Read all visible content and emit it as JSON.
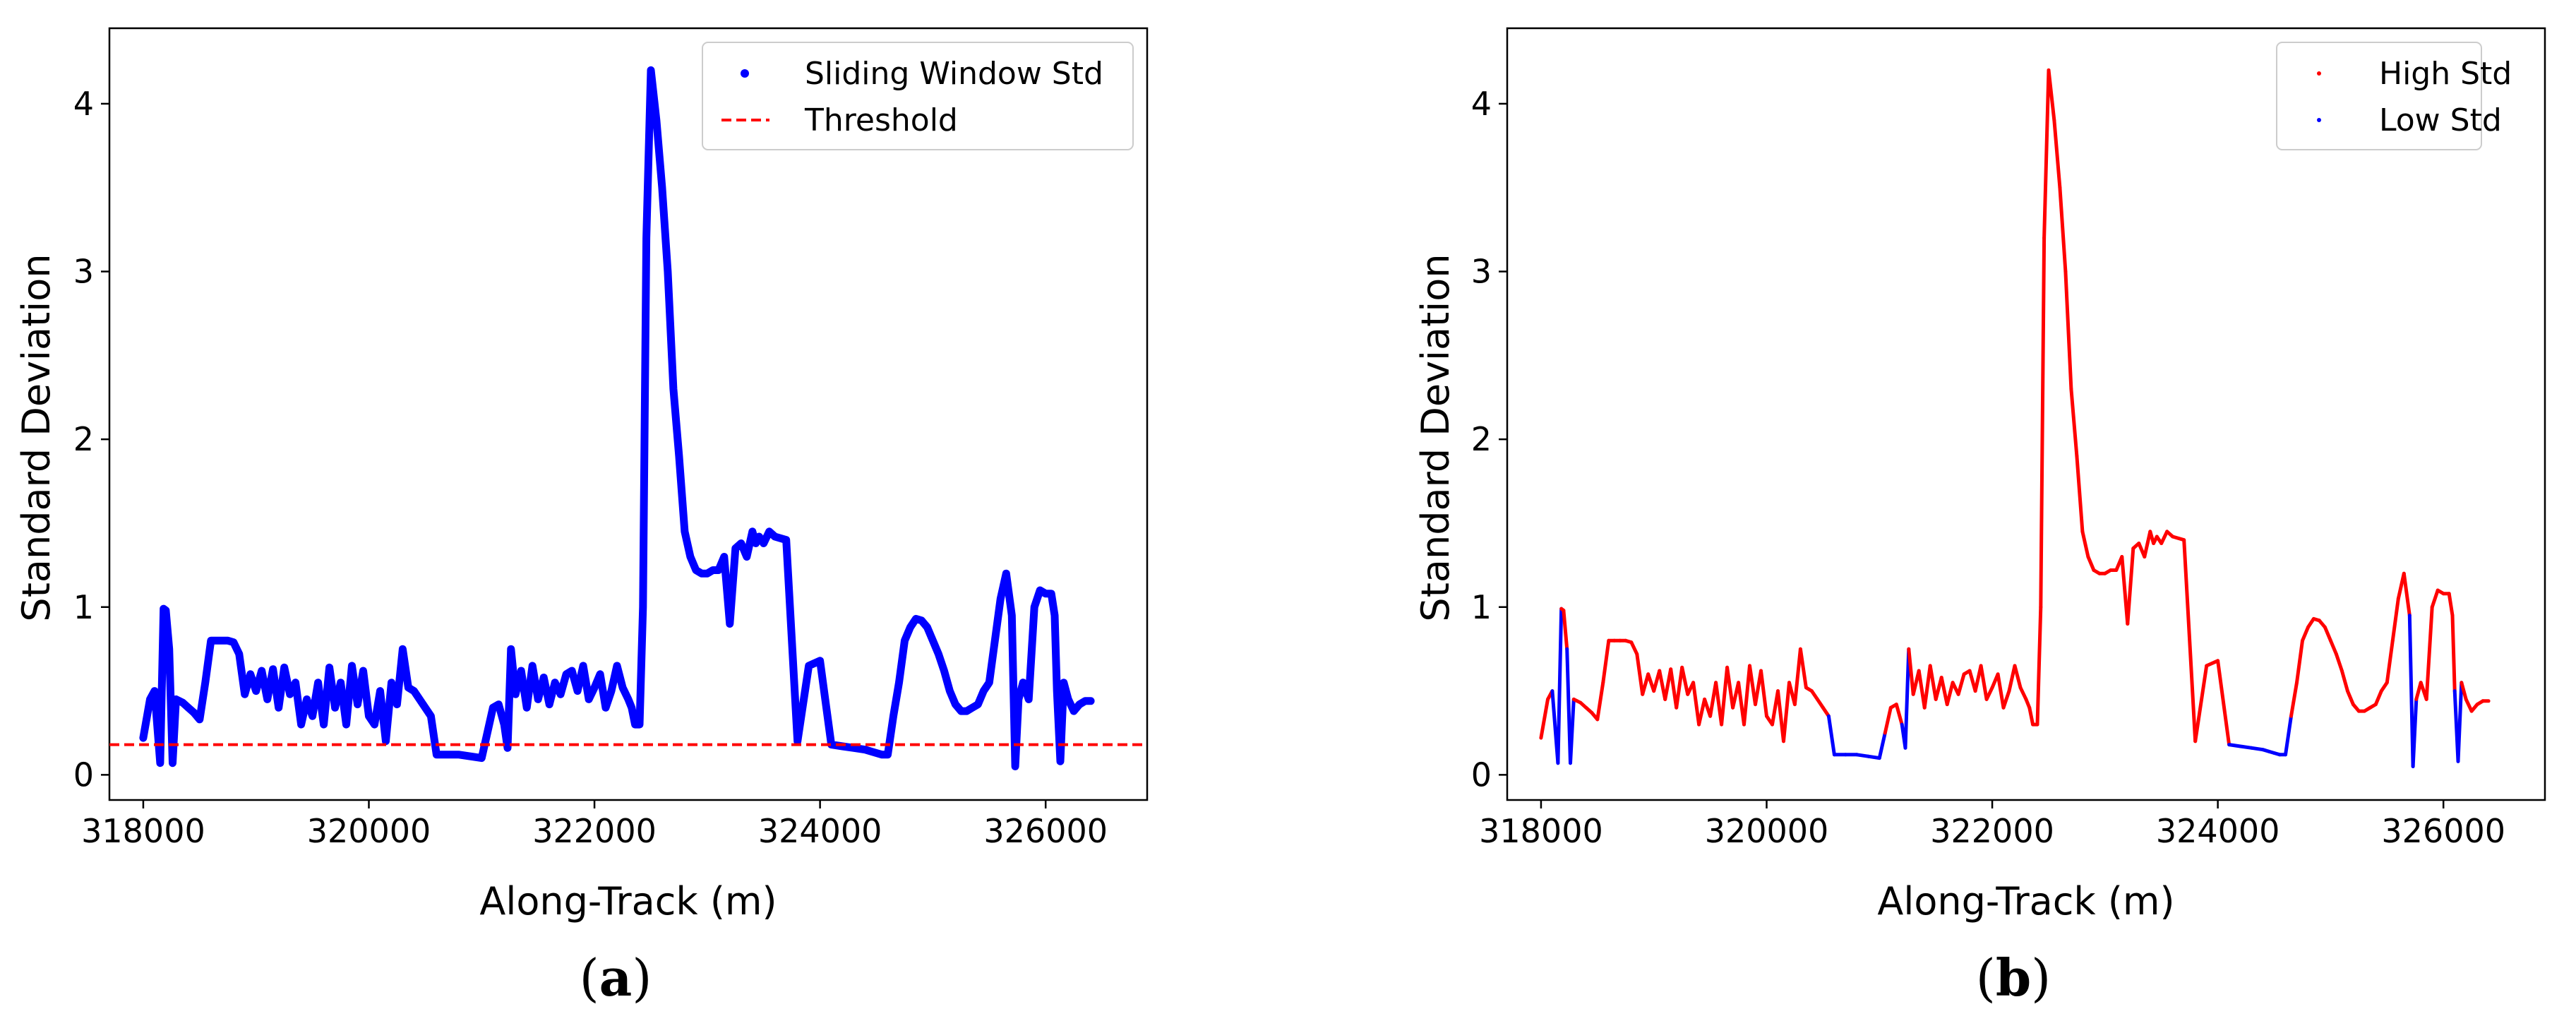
{
  "chart_data": [
    {
      "type": "line",
      "caption_open": "(",
      "caption_letter": "a",
      "caption_close": ")",
      "xlabel": "Along-Track (m)",
      "ylabel": "Standard Deviation",
      "xlim": [
        317700,
        326900
      ],
      "ylim": [
        -0.15,
        4.45
      ],
      "xticks": [
        318000,
        320000,
        322000,
        324000,
        326000
      ],
      "yticks": [
        0,
        1,
        2,
        3,
        4
      ],
      "legend_position": "top-right",
      "threshold": 0.18,
      "series": [
        {
          "name": "Sliding Window Std",
          "color": "#0000ff",
          "x": [
            318000,
            318060,
            318100,
            318150,
            318180,
            318200,
            318230,
            318260,
            318290,
            318320,
            318350,
            318400,
            318450,
            318500,
            318550,
            318600,
            318650,
            318700,
            318750,
            318800,
            318850,
            318900,
            318950,
            319000,
            319050,
            319100,
            319150,
            319200,
            319250,
            319300,
            319350,
            319400,
            319450,
            319500,
            319550,
            319600,
            319650,
            319700,
            319750,
            319800,
            319850,
            319900,
            319950,
            320000,
            320050,
            320100,
            320150,
            320200,
            320250,
            320300,
            320350,
            320400,
            320450,
            320500,
            320550,
            320600,
            320700,
            320800,
            320900,
            321000,
            321050,
            321100,
            321150,
            321200,
            321230,
            321260,
            321300,
            321350,
            321400,
            321450,
            321500,
            321550,
            321600,
            321650,
            321700,
            321750,
            321800,
            321850,
            321900,
            321950,
            322000,
            322050,
            322100,
            322150,
            322200,
            322250,
            322300,
            322330,
            322360,
            322400,
            322430,
            322460,
            322500,
            322550,
            322600,
            322650,
            322700,
            322750,
            322800,
            322850,
            322900,
            322950,
            323000,
            323050,
            323100,
            323150,
            323200,
            323250,
            323300,
            323350,
            323400,
            323430,
            323460,
            323500,
            323550,
            323600,
            323700,
            323800,
            323900,
            324000,
            324100,
            324200,
            324300,
            324400,
            324450,
            324500,
            324550,
            324600,
            324650,
            324700,
            324750,
            324800,
            324850,
            324900,
            324950,
            325000,
            325050,
            325100,
            325150,
            325200,
            325250,
            325300,
            325350,
            325400,
            325450,
            325500,
            325550,
            325600,
            325650,
            325700,
            325730,
            325760,
            325800,
            325850,
            325900,
            325950,
            326000,
            326050,
            326080,
            326100,
            326130,
            326160,
            326200,
            326250,
            326300,
            326350,
            326400
          ],
          "y": [
            0.22,
            0.45,
            0.5,
            0.07,
            0.99,
            0.98,
            0.75,
            0.07,
            0.45,
            0.44,
            0.43,
            0.4,
            0.37,
            0.33,
            0.55,
            0.8,
            0.8,
            0.8,
            0.8,
            0.79,
            0.72,
            0.48,
            0.6,
            0.5,
            0.62,
            0.45,
            0.63,
            0.4,
            0.64,
            0.48,
            0.55,
            0.3,
            0.45,
            0.35,
            0.55,
            0.3,
            0.64,
            0.4,
            0.55,
            0.3,
            0.65,
            0.42,
            0.62,
            0.35,
            0.3,
            0.5,
            0.2,
            0.55,
            0.42,
            0.75,
            0.52,
            0.5,
            0.45,
            0.4,
            0.35,
            0.12,
            0.12,
            0.12,
            0.11,
            0.1,
            0.25,
            0.4,
            0.42,
            0.3,
            0.16,
            0.75,
            0.48,
            0.62,
            0.4,
            0.65,
            0.45,
            0.58,
            0.42,
            0.55,
            0.48,
            0.6,
            0.62,
            0.5,
            0.65,
            0.45,
            0.52,
            0.6,
            0.4,
            0.5,
            0.65,
            0.52,
            0.45,
            0.4,
            0.3,
            0.3,
            1.0,
            3.2,
            4.2,
            3.9,
            3.5,
            3.0,
            2.3,
            1.9,
            1.45,
            1.3,
            1.22,
            1.2,
            1.2,
            1.22,
            1.22,
            1.3,
            0.9,
            1.35,
            1.38,
            1.3,
            1.45,
            1.38,
            1.42,
            1.38,
            1.45,
            1.42,
            1.4,
            0.2,
            0.65,
            0.68,
            0.18,
            0.17,
            0.16,
            0.15,
            0.14,
            0.13,
            0.12,
            0.12,
            0.35,
            0.55,
            0.8,
            0.88,
            0.93,
            0.92,
            0.88,
            0.8,
            0.72,
            0.62,
            0.5,
            0.42,
            0.38,
            0.38,
            0.4,
            0.42,
            0.5,
            0.55,
            0.8,
            1.05,
            1.2,
            0.95,
            0.05,
            0.45,
            0.55,
            0.45,
            1.0,
            1.1,
            1.08,
            1.08,
            0.95,
            0.5,
            0.08,
            0.55,
            0.45,
            0.38,
            0.42,
            0.44,
            0.44
          ]
        },
        {
          "name": "Threshold",
          "color": "#ff0000",
          "style": "dashed"
        }
      ]
    },
    {
      "type": "line",
      "caption_open": "(",
      "caption_letter": "b",
      "caption_close": ")",
      "xlabel": "Along-Track (m)",
      "ylabel": "Standard Deviation",
      "xlim": [
        317700,
        326900
      ],
      "ylim": [
        -0.15,
        4.45
      ],
      "xticks": [
        318000,
        320000,
        322000,
        324000,
        326000
      ],
      "yticks": [
        0,
        1,
        2,
        3,
        4
      ],
      "legend_position": "top-right",
      "series": [
        {
          "name": "High Std",
          "color": "#ff0000"
        },
        {
          "name": "Low Std",
          "color": "#0000ff"
        }
      ]
    }
  ]
}
